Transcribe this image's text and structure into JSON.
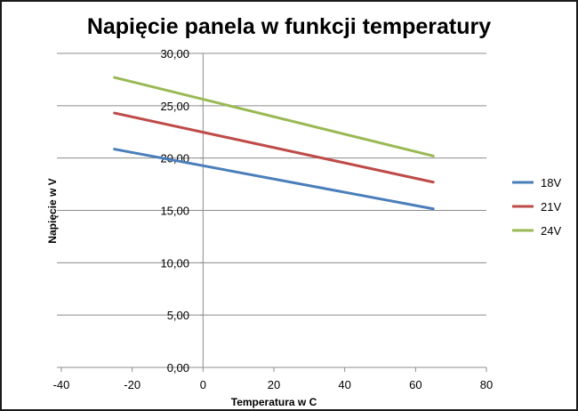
{
  "chart_data": {
    "type": "line",
    "title": "Napięcie panela w funkcji temperatury",
    "xlabel": "Temperatura w C",
    "ylabel": "Napięcie w V",
    "xlim": [
      -40,
      80
    ],
    "ylim": [
      0,
      30
    ],
    "x_ticks": [
      "-40",
      "-20",
      "0",
      "20",
      "40",
      "60",
      "80"
    ],
    "y_ticks": [
      "0,00",
      "5,00",
      "10,00",
      "15,00",
      "20,00",
      "25,00",
      "30,00"
    ],
    "grid": "horizontal",
    "legend_position": "right",
    "series": [
      {
        "name": "18V",
        "color": "#4a7ebb",
        "x": [
          -25,
          65
        ],
        "y": [
          20.85,
          15.15
        ]
      },
      {
        "name": "21V",
        "color": "#be4b48",
        "x": [
          -25,
          65
        ],
        "y": [
          24.3,
          17.7
        ]
      },
      {
        "name": "24V",
        "color": "#98b954",
        "x": [
          -25,
          65
        ],
        "y": [
          27.7,
          20.2
        ]
      }
    ]
  }
}
